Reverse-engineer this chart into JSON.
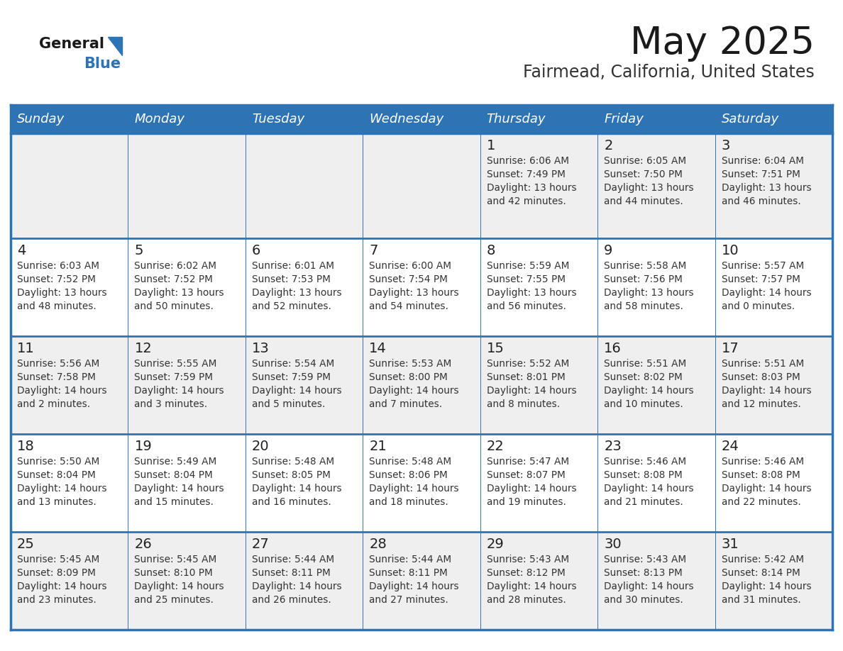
{
  "title": "May 2025",
  "subtitle": "Fairmead, California, United States",
  "days_of_week": [
    "Sunday",
    "Monday",
    "Tuesday",
    "Wednesday",
    "Thursday",
    "Friday",
    "Saturday"
  ],
  "header_bg": "#2E74B5",
  "header_text_color": "#FFFFFF",
  "row_bg_even": "#EFEFEF",
  "row_bg_odd": "#FFFFFF",
  "cell_text_color": "#333333",
  "day_num_color": "#222222",
  "separator_color": "#2E74B5",
  "logo_general_color": "#1a1a1a",
  "logo_blue_color": "#2E74B5",
  "calendar_data": [
    [
      null,
      null,
      null,
      null,
      {
        "day": 1,
        "sunrise": "6:06 AM",
        "sunset": "7:49 PM",
        "daylight_h": "13 hours",
        "daylight_m": "42 minutes"
      },
      {
        "day": 2,
        "sunrise": "6:05 AM",
        "sunset": "7:50 PM",
        "daylight_h": "13 hours",
        "daylight_m": "44 minutes"
      },
      {
        "day": 3,
        "sunrise": "6:04 AM",
        "sunset": "7:51 PM",
        "daylight_h": "13 hours",
        "daylight_m": "46 minutes"
      }
    ],
    [
      {
        "day": 4,
        "sunrise": "6:03 AM",
        "sunset": "7:52 PM",
        "daylight_h": "13 hours",
        "daylight_m": "48 minutes"
      },
      {
        "day": 5,
        "sunrise": "6:02 AM",
        "sunset": "7:52 PM",
        "daylight_h": "13 hours",
        "daylight_m": "50 minutes"
      },
      {
        "day": 6,
        "sunrise": "6:01 AM",
        "sunset": "7:53 PM",
        "daylight_h": "13 hours",
        "daylight_m": "52 minutes"
      },
      {
        "day": 7,
        "sunrise": "6:00 AM",
        "sunset": "7:54 PM",
        "daylight_h": "13 hours",
        "daylight_m": "54 minutes"
      },
      {
        "day": 8,
        "sunrise": "5:59 AM",
        "sunset": "7:55 PM",
        "daylight_h": "13 hours",
        "daylight_m": "56 minutes"
      },
      {
        "day": 9,
        "sunrise": "5:58 AM",
        "sunset": "7:56 PM",
        "daylight_h": "13 hours",
        "daylight_m": "58 minutes"
      },
      {
        "day": 10,
        "sunrise": "5:57 AM",
        "sunset": "7:57 PM",
        "daylight_h": "14 hours",
        "daylight_m": "0 minutes"
      }
    ],
    [
      {
        "day": 11,
        "sunrise": "5:56 AM",
        "sunset": "7:58 PM",
        "daylight_h": "14 hours",
        "daylight_m": "2 minutes"
      },
      {
        "day": 12,
        "sunrise": "5:55 AM",
        "sunset": "7:59 PM",
        "daylight_h": "14 hours",
        "daylight_m": "3 minutes"
      },
      {
        "day": 13,
        "sunrise": "5:54 AM",
        "sunset": "7:59 PM",
        "daylight_h": "14 hours",
        "daylight_m": "5 minutes"
      },
      {
        "day": 14,
        "sunrise": "5:53 AM",
        "sunset": "8:00 PM",
        "daylight_h": "14 hours",
        "daylight_m": "7 minutes"
      },
      {
        "day": 15,
        "sunrise": "5:52 AM",
        "sunset": "8:01 PM",
        "daylight_h": "14 hours",
        "daylight_m": "8 minutes"
      },
      {
        "day": 16,
        "sunrise": "5:51 AM",
        "sunset": "8:02 PM",
        "daylight_h": "14 hours",
        "daylight_m": "10 minutes"
      },
      {
        "day": 17,
        "sunrise": "5:51 AM",
        "sunset": "8:03 PM",
        "daylight_h": "14 hours",
        "daylight_m": "12 minutes"
      }
    ],
    [
      {
        "day": 18,
        "sunrise": "5:50 AM",
        "sunset": "8:04 PM",
        "daylight_h": "14 hours",
        "daylight_m": "13 minutes"
      },
      {
        "day": 19,
        "sunrise": "5:49 AM",
        "sunset": "8:04 PM",
        "daylight_h": "14 hours",
        "daylight_m": "15 minutes"
      },
      {
        "day": 20,
        "sunrise": "5:48 AM",
        "sunset": "8:05 PM",
        "daylight_h": "14 hours",
        "daylight_m": "16 minutes"
      },
      {
        "day": 21,
        "sunrise": "5:48 AM",
        "sunset": "8:06 PM",
        "daylight_h": "14 hours",
        "daylight_m": "18 minutes"
      },
      {
        "day": 22,
        "sunrise": "5:47 AM",
        "sunset": "8:07 PM",
        "daylight_h": "14 hours",
        "daylight_m": "19 minutes"
      },
      {
        "day": 23,
        "sunrise": "5:46 AM",
        "sunset": "8:08 PM",
        "daylight_h": "14 hours",
        "daylight_m": "21 minutes"
      },
      {
        "day": 24,
        "sunrise": "5:46 AM",
        "sunset": "8:08 PM",
        "daylight_h": "14 hours",
        "daylight_m": "22 minutes"
      }
    ],
    [
      {
        "day": 25,
        "sunrise": "5:45 AM",
        "sunset": "8:09 PM",
        "daylight_h": "14 hours",
        "daylight_m": "23 minutes"
      },
      {
        "day": 26,
        "sunrise": "5:45 AM",
        "sunset": "8:10 PM",
        "daylight_h": "14 hours",
        "daylight_m": "25 minutes"
      },
      {
        "day": 27,
        "sunrise": "5:44 AM",
        "sunset": "8:11 PM",
        "daylight_h": "14 hours",
        "daylight_m": "26 minutes"
      },
      {
        "day": 28,
        "sunrise": "5:44 AM",
        "sunset": "8:11 PM",
        "daylight_h": "14 hours",
        "daylight_m": "27 minutes"
      },
      {
        "day": 29,
        "sunrise": "5:43 AM",
        "sunset": "8:12 PM",
        "daylight_h": "14 hours",
        "daylight_m": "28 minutes"
      },
      {
        "day": 30,
        "sunrise": "5:43 AM",
        "sunset": "8:13 PM",
        "daylight_h": "14 hours",
        "daylight_m": "30 minutes"
      },
      {
        "day": 31,
        "sunrise": "5:42 AM",
        "sunset": "8:14 PM",
        "daylight_h": "14 hours",
        "daylight_m": "31 minutes"
      }
    ]
  ]
}
